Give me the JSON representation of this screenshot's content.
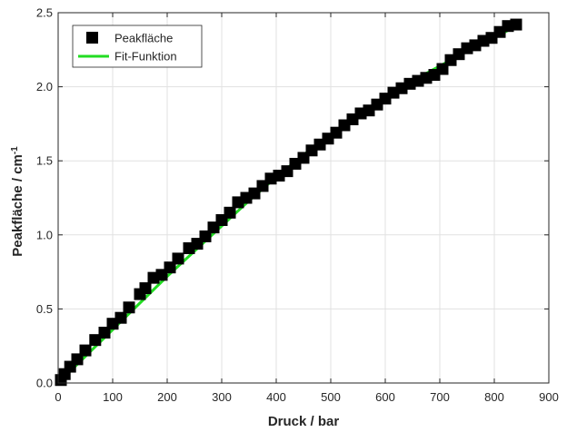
{
  "chart_data": {
    "type": "scatter",
    "xlabel": "Druck / bar",
    "ylabel_main": "Peakfläche / cm",
    "ylabel_sup": "-1",
    "xlim": [
      0,
      900
    ],
    "ylim": [
      0,
      2.5
    ],
    "xticks": [
      0,
      100,
      200,
      300,
      400,
      500,
      600,
      700,
      800,
      900
    ],
    "yticks": [
      {
        "value": 0.0,
        "label": "0.0"
      },
      {
        "value": 0.5,
        "label": "0.5"
      },
      {
        "value": 1.0,
        "label": "1.0"
      },
      {
        "value": 1.5,
        "label": "1.5"
      },
      {
        "value": 2.0,
        "label": "2.0"
      },
      {
        "value": 2.5,
        "label": "2.5"
      }
    ],
    "grid": true,
    "legend_position": "top-left",
    "series": [
      {
        "name": "Peakfläche",
        "kind": "markers",
        "color": "#000000",
        "points": [
          [
            5,
            0.02
          ],
          [
            12,
            0.06
          ],
          [
            22,
            0.11
          ],
          [
            35,
            0.16
          ],
          [
            50,
            0.22
          ],
          [
            68,
            0.29
          ],
          [
            85,
            0.34
          ],
          [
            100,
            0.4
          ],
          [
            115,
            0.44
          ],
          [
            130,
            0.51
          ],
          [
            150,
            0.6
          ],
          [
            160,
            0.64
          ],
          [
            175,
            0.71
          ],
          [
            190,
            0.73
          ],
          [
            205,
            0.78
          ],
          [
            220,
            0.84
          ],
          [
            240,
            0.91
          ],
          [
            255,
            0.94
          ],
          [
            270,
            0.99
          ],
          [
            285,
            1.05
          ],
          [
            300,
            1.1
          ],
          [
            315,
            1.15
          ],
          [
            330,
            1.22
          ],
          [
            345,
            1.25
          ],
          [
            360,
            1.28
          ],
          [
            375,
            1.33
          ],
          [
            390,
            1.38
          ],
          [
            405,
            1.4
          ],
          [
            420,
            1.43
          ],
          [
            435,
            1.48
          ],
          [
            450,
            1.52
          ],
          [
            465,
            1.57
          ],
          [
            480,
            1.61
          ],
          [
            495,
            1.65
          ],
          [
            510,
            1.69
          ],
          [
            525,
            1.74
          ],
          [
            540,
            1.78
          ],
          [
            555,
            1.82
          ],
          [
            570,
            1.84
          ],
          [
            585,
            1.88
          ],
          [
            600,
            1.92
          ],
          [
            615,
            1.96
          ],
          [
            630,
            1.99
          ],
          [
            645,
            2.02
          ],
          [
            660,
            2.04
          ],
          [
            675,
            2.06
          ],
          [
            690,
            2.08
          ],
          [
            705,
            2.12
          ],
          [
            720,
            2.18
          ],
          [
            735,
            2.22
          ],
          [
            750,
            2.26
          ],
          [
            765,
            2.28
          ],
          [
            780,
            2.31
          ],
          [
            795,
            2.33
          ],
          [
            810,
            2.37
          ],
          [
            825,
            2.41
          ],
          [
            840,
            2.42
          ]
        ]
      },
      {
        "name": "Fit-Funktion",
        "kind": "line",
        "color": "#22dd22",
        "points": [
          [
            0,
            0.0
          ],
          [
            50,
            0.18
          ],
          [
            100,
            0.36
          ],
          [
            150,
            0.54
          ],
          [
            200,
            0.72
          ],
          [
            250,
            0.89
          ],
          [
            300,
            1.06
          ],
          [
            350,
            1.23
          ],
          [
            400,
            1.39
          ],
          [
            450,
            1.54
          ],
          [
            500,
            1.68
          ],
          [
            550,
            1.81
          ],
          [
            600,
            1.93
          ],
          [
            650,
            2.04
          ],
          [
            700,
            2.14
          ],
          [
            750,
            2.24
          ],
          [
            800,
            2.33
          ],
          [
            840,
            2.41
          ]
        ]
      }
    ]
  }
}
